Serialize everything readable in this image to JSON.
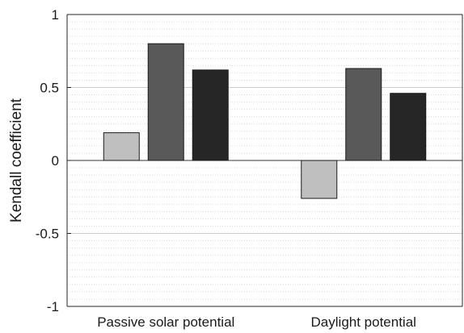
{
  "chart_data": {
    "type": "bar",
    "title": "",
    "xlabel": "",
    "ylabel": "Kendall coefficient",
    "categories": [
      "Passive solar potential",
      "Daylight potential"
    ],
    "series": [
      {
        "values": [
          0.19,
          -0.26
        ],
        "color": "#bfbfbf"
      },
      {
        "values": [
          0.8,
          0.63
        ],
        "color": "#595959"
      },
      {
        "values": [
          0.62,
          0.46
        ],
        "color": "#262626"
      }
    ],
    "ylim": [
      -1,
      1
    ],
    "yticks": [
      -1,
      -0.5,
      0,
      0.5,
      1
    ],
    "ytick_labels": [
      "-1",
      "-0.5",
      "0",
      "0.5",
      "1"
    ],
    "grid": "dotted horizontal minor grid",
    "legend": "none"
  }
}
